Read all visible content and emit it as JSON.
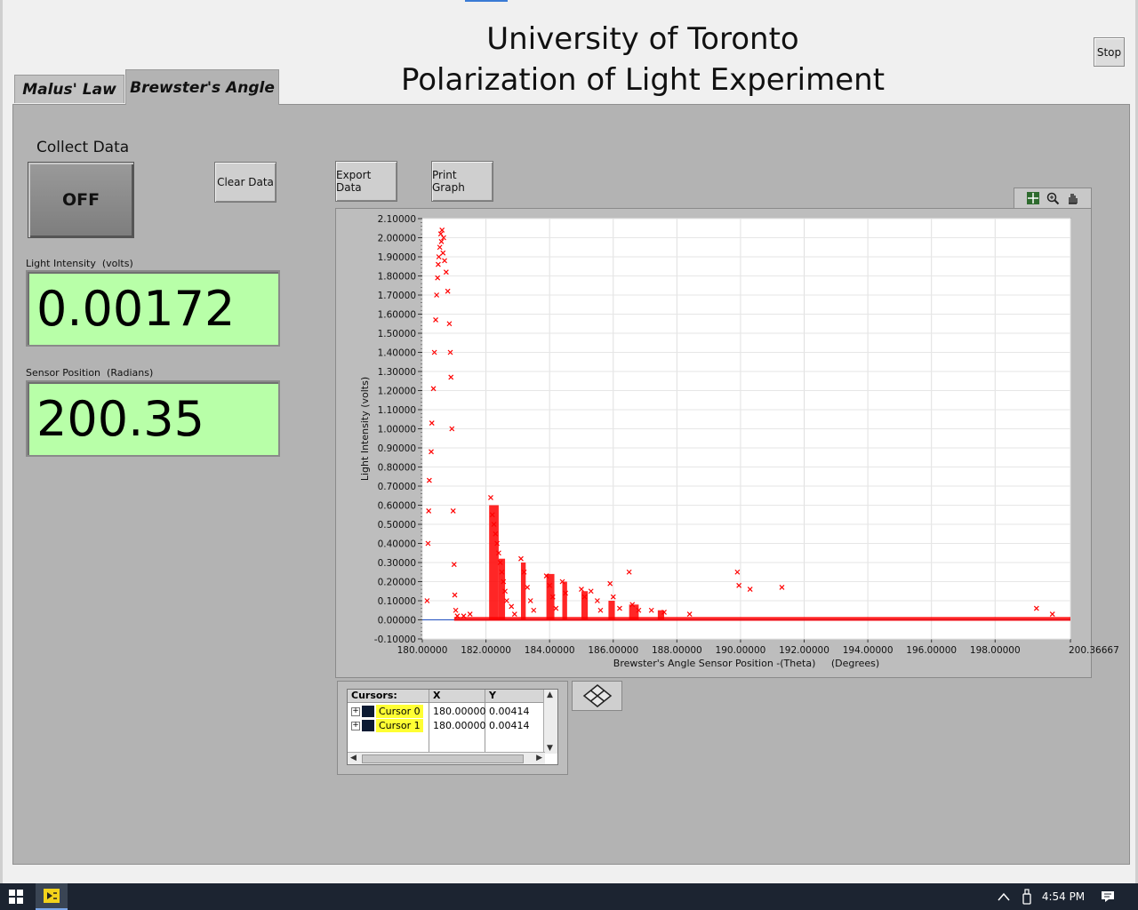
{
  "title": {
    "line1": "University of Toronto",
    "line2": "Polarization of Light Experiment"
  },
  "stop_button": "Stop",
  "tabs": [
    {
      "label": "Malus' Law",
      "active": false
    },
    {
      "label": "Brewster's Angle",
      "active": true
    }
  ],
  "controls": {
    "collect_label": "Collect Data",
    "collect_state": "OFF",
    "clear_label": "Clear Data",
    "export_label": "Export Data",
    "print_label": "Print Graph"
  },
  "indicators": {
    "intensity_label": "Light Intensity  (volts)",
    "intensity_value": "0.00172",
    "position_label": "Sensor Position  (Radians)",
    "position_value": "200.35",
    "color": "#b8ffa8"
  },
  "graph_palette": {
    "icons": [
      "cursor-move-icon",
      "zoom-icon",
      "pan-hand-icon"
    ]
  },
  "chart_data": {
    "type": "scatter",
    "xlabel": "Brewster's Angle Sensor Position -(Theta)     (Degrees)",
    "ylabel": "Light Intensity (volts)",
    "xlim": [
      180.0,
      200.36667
    ],
    "ylim": [
      -0.1,
      2.1
    ],
    "x_ticks": [
      "180.00000",
      "182.00000",
      "184.00000",
      "186.00000",
      "188.00000",
      "190.00000",
      "192.00000",
      "194.00000",
      "196.00000",
      "198.00000",
      "200.36667"
    ],
    "x_tick_values": [
      180,
      182,
      184,
      186,
      188,
      190,
      192,
      194,
      196,
      198,
      200.36667
    ],
    "y_ticks": [
      "-0.10000",
      "0.00000",
      "0.10000",
      "0.20000",
      "0.30000",
      "0.40000",
      "0.50000",
      "0.60000",
      "0.70000",
      "0.80000",
      "0.90000",
      "1.00000",
      "1.10000",
      "1.20000",
      "1.30000",
      "1.40000",
      "1.50000",
      "1.60000",
      "1.70000",
      "1.80000",
      "1.90000",
      "2.00000",
      "2.10000"
    ],
    "y_tick_values": [
      -0.1,
      0,
      0.1,
      0.2,
      0.3,
      0.4,
      0.5,
      0.6,
      0.7,
      0.8,
      0.9,
      1.0,
      1.1,
      1.2,
      1.3,
      1.4,
      1.5,
      1.6,
      1.7,
      1.8,
      1.9,
      2.0,
      2.1
    ],
    "grid": true,
    "marker": "x",
    "marker_color": "#ff0000",
    "baseline_color": "#1f4fbf",
    "points": [
      [
        180.15,
        0.1
      ],
      [
        180.18,
        0.4
      ],
      [
        180.2,
        0.57
      ],
      [
        180.22,
        0.73
      ],
      [
        180.28,
        0.88
      ],
      [
        180.3,
        1.03
      ],
      [
        180.35,
        1.21
      ],
      [
        180.38,
        1.4
      ],
      [
        180.42,
        1.57
      ],
      [
        180.45,
        1.7
      ],
      [
        180.48,
        1.79
      ],
      [
        180.5,
        1.86
      ],
      [
        180.52,
        1.9
      ],
      [
        180.55,
        1.95
      ],
      [
        180.58,
        2.02
      ],
      [
        180.6,
        1.98
      ],
      [
        180.62,
        2.04
      ],
      [
        180.65,
        1.92
      ],
      [
        180.67,
        2.0
      ],
      [
        180.7,
        1.88
      ],
      [
        180.75,
        1.82
      ],
      [
        180.8,
        1.72
      ],
      [
        180.85,
        1.55
      ],
      [
        180.88,
        1.4
      ],
      [
        180.9,
        1.27
      ],
      [
        180.93,
        1.0
      ],
      [
        180.97,
        0.57
      ],
      [
        181.0,
        0.29
      ],
      [
        181.02,
        0.13
      ],
      [
        181.05,
        0.05
      ],
      [
        181.1,
        0.02
      ],
      [
        181.3,
        0.02
      ],
      [
        181.5,
        0.03
      ],
      [
        182.15,
        0.64
      ],
      [
        182.2,
        0.55
      ],
      [
        182.25,
        0.5
      ],
      [
        182.3,
        0.45
      ],
      [
        182.35,
        0.4
      ],
      [
        182.4,
        0.35
      ],
      [
        182.45,
        0.3
      ],
      [
        182.5,
        0.25
      ],
      [
        182.55,
        0.2
      ],
      [
        182.6,
        0.15
      ],
      [
        182.65,
        0.1
      ],
      [
        182.8,
        0.07
      ],
      [
        182.9,
        0.03
      ],
      [
        183.1,
        0.32
      ],
      [
        183.2,
        0.25
      ],
      [
        183.3,
        0.17
      ],
      [
        183.4,
        0.1
      ],
      [
        183.5,
        0.05
      ],
      [
        183.9,
        0.23
      ],
      [
        184.0,
        0.18
      ],
      [
        184.1,
        0.12
      ],
      [
        184.2,
        0.06
      ],
      [
        184.4,
        0.2
      ],
      [
        184.5,
        0.14
      ],
      [
        185.0,
        0.16
      ],
      [
        185.1,
        0.12
      ],
      [
        185.3,
        0.15
      ],
      [
        185.5,
        0.1
      ],
      [
        185.6,
        0.05
      ],
      [
        185.9,
        0.19
      ],
      [
        186.0,
        0.12
      ],
      [
        186.2,
        0.06
      ],
      [
        186.5,
        0.25
      ],
      [
        186.6,
        0.08
      ],
      [
        186.8,
        0.05
      ],
      [
        187.2,
        0.05
      ],
      [
        187.6,
        0.04
      ],
      [
        188.4,
        0.03
      ],
      [
        189.9,
        0.25
      ],
      [
        189.95,
        0.18
      ],
      [
        190.3,
        0.16
      ],
      [
        191.3,
        0.17
      ],
      [
        199.3,
        0.06
      ],
      [
        199.8,
        0.03
      ]
    ],
    "bands": [
      {
        "x_start": 182.1,
        "x_end": 182.4,
        "y_low": 0.0,
        "y_high": 0.6
      },
      {
        "x_start": 182.4,
        "x_end": 182.6,
        "y_low": 0.0,
        "y_high": 0.32
      },
      {
        "x_start": 183.1,
        "x_end": 183.25,
        "y_low": 0.0,
        "y_high": 0.3
      },
      {
        "x_start": 183.9,
        "x_end": 184.15,
        "y_low": 0.0,
        "y_high": 0.24
      },
      {
        "x_start": 184.4,
        "x_end": 184.55,
        "y_low": 0.0,
        "y_high": 0.2
      },
      {
        "x_start": 185.0,
        "x_end": 185.2,
        "y_low": 0.0,
        "y_high": 0.15
      },
      {
        "x_start": 185.85,
        "x_end": 186.05,
        "y_low": 0.0,
        "y_high": 0.1
      },
      {
        "x_start": 186.5,
        "x_end": 186.8,
        "y_low": 0.0,
        "y_high": 0.08
      },
      {
        "x_start": 187.4,
        "x_end": 187.6,
        "y_low": 0.0,
        "y_high": 0.05
      },
      {
        "x_start": 181.0,
        "x_end": 200.36667,
        "y_low": -0.005,
        "y_high": 0.015
      }
    ]
  },
  "cursors": {
    "header": "Cursors:",
    "col_x": "X",
    "col_y": "Y",
    "rows": [
      {
        "name": "Cursor 0",
        "x": "180.00000",
        "y": "0.00414"
      },
      {
        "name": "Cursor 1",
        "x": "180.00000",
        "y": "0.00414"
      }
    ]
  },
  "taskbar": {
    "time": "4:54 PM"
  }
}
